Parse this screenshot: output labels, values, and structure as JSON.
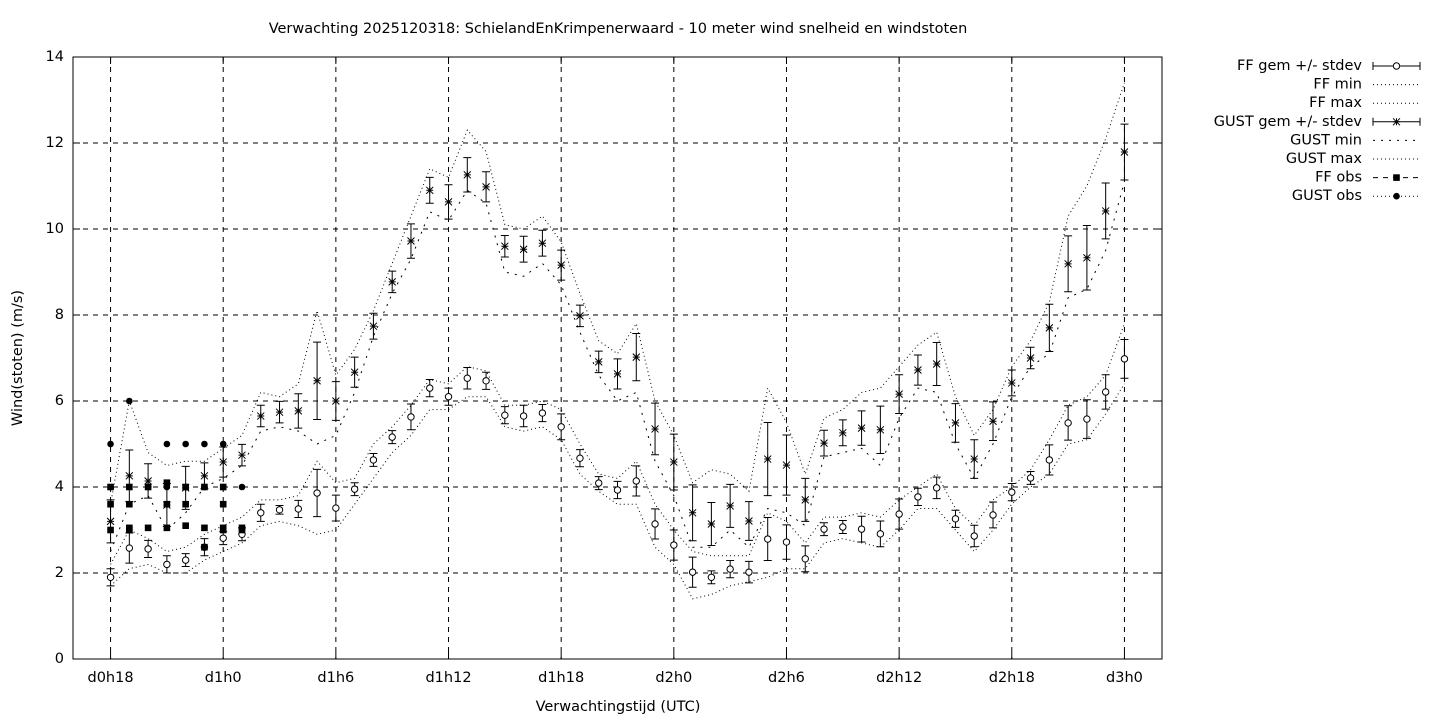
{
  "chart_data": {
    "type": "errorbar",
    "title": "Verwachting 2025120318: SchielandEnKrimpenerwaard - 10 meter wind snelheid en windstoten",
    "xlabel": "Verwachtingstijd (UTC)",
    "ylabel": "Wind(stoten) (m/s)",
    "xlim": [
      16,
      74
    ],
    "xticks": [
      {
        "value": 18,
        "label": "d0h18"
      },
      {
        "value": 24,
        "label": "d1h0"
      },
      {
        "value": 30,
        "label": "d1h6"
      },
      {
        "value": 36,
        "label": "d1h12"
      },
      {
        "value": 42,
        "label": "d1h18"
      },
      {
        "value": 48,
        "label": "d2h0"
      },
      {
        "value": 54,
        "label": "d2h6"
      },
      {
        "value": 60,
        "label": "d2h12"
      },
      {
        "value": 66,
        "label": "d2h18"
      },
      {
        "value": 72,
        "label": "d3h0"
      }
    ],
    "ylim": [
      0,
      14
    ],
    "yticks": [
      0,
      2,
      4,
      6,
      8,
      10,
      12,
      14
    ],
    "grid": true,
    "legend": "outside-top-right",
    "x": [
      18,
      19,
      20,
      21,
      22,
      23,
      24,
      25,
      26,
      27,
      28,
      29,
      30,
      31,
      32,
      33,
      34,
      35,
      36,
      37,
      38,
      39,
      40,
      41,
      42,
      43,
      44,
      45,
      46,
      47,
      48,
      49,
      50,
      51,
      52,
      53,
      54,
      55,
      56,
      57,
      58,
      59,
      60,
      61,
      62,
      63,
      64,
      65,
      66,
      67,
      68,
      69,
      70,
      71,
      72
    ],
    "series": [
      {
        "name": "FF gem +/- stdev",
        "style": "errorbar",
        "marker": "open-circle",
        "color": "#000000",
        "values": [
          1.9,
          2.58,
          2.56,
          2.2,
          2.3,
          2.6,
          2.81,
          2.9,
          3.4,
          3.47,
          3.49,
          3.86,
          3.51,
          3.95,
          4.63,
          5.16,
          5.63,
          6.3,
          6.1,
          6.53,
          6.47,
          5.67,
          5.65,
          5.72,
          5.4,
          4.67,
          4.09,
          3.93,
          4.14,
          3.14,
          2.65,
          2.02,
          1.9,
          2.09,
          2.02,
          2.79,
          2.72,
          2.33,
          3.02,
          3.07,
          3.02,
          2.91,
          3.37,
          3.77,
          3.98,
          3.26,
          2.86,
          3.35,
          3.88,
          4.21,
          4.63,
          5.49,
          5.58,
          6.21,
          6.98
        ],
        "errors": [
          0.2,
          0.35,
          0.2,
          0.2,
          0.15,
          0.2,
          0.15,
          0.15,
          0.2,
          0.1,
          0.2,
          0.55,
          0.3,
          0.15,
          0.15,
          0.15,
          0.3,
          0.2,
          0.2,
          0.25,
          0.2,
          0.2,
          0.25,
          0.2,
          0.3,
          0.2,
          0.15,
          0.2,
          0.35,
          0.35,
          0.35,
          0.35,
          0.15,
          0.2,
          0.25,
          0.5,
          0.4,
          0.3,
          0.15,
          0.15,
          0.3,
          0.3,
          0.35,
          0.2,
          0.25,
          0.2,
          0.25,
          0.3,
          0.2,
          0.15,
          0.35,
          0.4,
          0.45,
          0.4,
          0.45
        ]
      },
      {
        "name": "FF min",
        "style": "dotted",
        "color": "#000000",
        "values": [
          1.7,
          2.1,
          2.2,
          2.0,
          2.0,
          2.3,
          2.5,
          2.7,
          3.1,
          3.2,
          3.1,
          2.9,
          3.0,
          3.6,
          4.2,
          4.8,
          5.2,
          5.8,
          5.8,
          6.1,
          6.1,
          5.4,
          5.3,
          5.4,
          5.1,
          4.3,
          3.9,
          3.6,
          3.6,
          2.6,
          2.2,
          1.4,
          1.5,
          1.7,
          1.8,
          1.9,
          2.1,
          2.1,
          2.7,
          2.8,
          2.7,
          2.6,
          3.0,
          3.5,
          3.5,
          3.0,
          2.5,
          3.0,
          3.6,
          4.0,
          4.3,
          5.0,
          5.1,
          5.7,
          6.4
        ]
      },
      {
        "name": "FF max",
        "style": "dotted",
        "color": "#000000",
        "values": [
          2.2,
          3.0,
          2.8,
          2.5,
          2.6,
          2.9,
          3.1,
          3.3,
          3.7,
          3.7,
          3.8,
          4.6,
          4.1,
          4.2,
          5.0,
          5.4,
          5.9,
          6.5,
          6.4,
          6.8,
          6.7,
          5.9,
          5.9,
          6.0,
          5.8,
          5.0,
          4.3,
          4.2,
          4.6,
          3.6,
          3.0,
          2.5,
          2.4,
          2.4,
          2.4,
          3.4,
          3.2,
          2.7,
          3.3,
          3.3,
          3.4,
          3.3,
          3.7,
          4.0,
          4.3,
          3.5,
          3.1,
          3.7,
          4.0,
          4.4,
          5.1,
          5.9,
          6.1,
          6.6,
          7.8
        ]
      },
      {
        "name": "GUST gem +/- stdev",
        "style": "errorbar",
        "marker": "star",
        "color": "#000000",
        "values": [
          3.2,
          4.26,
          4.14,
          3.58,
          3.98,
          4.26,
          4.58,
          4.74,
          5.65,
          5.74,
          5.77,
          6.47,
          6.0,
          6.67,
          7.74,
          8.77,
          9.72,
          10.9,
          10.63,
          11.26,
          10.98,
          9.6,
          9.53,
          9.67,
          9.16,
          7.98,
          6.91,
          6.63,
          7.02,
          5.35,
          4.58,
          3.4,
          3.14,
          3.56,
          3.21,
          4.65,
          4.51,
          3.7,
          5.02,
          5.26,
          5.37,
          5.33,
          6.16,
          6.72,
          6.86,
          5.49,
          4.65,
          5.53,
          6.42,
          7.0,
          7.7,
          9.19,
          9.33,
          10.42,
          11.79
        ],
        "errors": [
          0.5,
          0.6,
          0.4,
          0.5,
          0.5,
          0.3,
          0.35,
          0.25,
          0.25,
          0.25,
          0.4,
          0.9,
          0.45,
          0.35,
          0.3,
          0.25,
          0.4,
          0.3,
          0.4,
          0.4,
          0.35,
          0.25,
          0.3,
          0.3,
          0.35,
          0.25,
          0.25,
          0.35,
          0.55,
          0.6,
          0.65,
          0.65,
          0.5,
          0.5,
          0.45,
          0.85,
          0.7,
          0.5,
          0.3,
          0.3,
          0.4,
          0.55,
          0.45,
          0.35,
          0.5,
          0.45,
          0.45,
          0.45,
          0.3,
          0.25,
          0.55,
          0.65,
          0.75,
          0.65,
          0.65
        ]
      },
      {
        "name": "GUST min",
        "style": "dotted-wide",
        "color": "#000000",
        "values": [
          2.5,
          3.6,
          3.8,
          3.0,
          3.4,
          4.0,
          4.2,
          4.5,
          5.3,
          5.4,
          5.3,
          5.0,
          5.2,
          6.2,
          7.5,
          8.5,
          9.3,
          10.4,
          10.2,
          10.9,
          10.6,
          9.0,
          8.9,
          9.2,
          8.7,
          7.6,
          6.6,
          6.0,
          6.2,
          4.6,
          3.8,
          2.6,
          2.6,
          3.0,
          2.6,
          3.5,
          3.4,
          3.1,
          4.7,
          4.8,
          4.9,
          4.5,
          5.6,
          6.3,
          6.2,
          5.0,
          4.2,
          5.0,
          6.1,
          6.8,
          7.1,
          8.4,
          8.6,
          9.5,
          11.1
        ]
      },
      {
        "name": "GUST max",
        "style": "dotted",
        "color": "#000000",
        "values": [
          3.6,
          6.0,
          4.8,
          4.5,
          4.6,
          4.6,
          4.9,
          5.2,
          6.2,
          6.1,
          6.4,
          8.1,
          6.6,
          7.2,
          8.1,
          9.2,
          10.3,
          11.4,
          11.2,
          12.3,
          11.8,
          10.1,
          10.0,
          10.3,
          9.7,
          8.5,
          7.4,
          7.1,
          7.8,
          6.0,
          5.2,
          4.1,
          4.4,
          4.3,
          3.9,
          6.3,
          5.5,
          4.3,
          5.6,
          5.8,
          6.2,
          6.3,
          6.8,
          7.3,
          7.6,
          6.1,
          5.2,
          5.8,
          6.8,
          7.4,
          8.3,
          10.3,
          11.0,
          12.1,
          13.4
        ]
      },
      {
        "name": "FF obs",
        "style": "points",
        "marker": "square",
        "color": "#000000",
        "x": [
          18,
          18,
          18,
          19,
          19,
          19,
          19,
          20,
          20,
          21,
          21,
          21,
          22,
          22,
          22,
          23,
          23,
          23,
          24,
          24,
          24,
          24,
          25,
          25
        ],
        "values": [
          4.0,
          3.6,
          3.0,
          4.0,
          3.6,
          3.05,
          3.0,
          4.0,
          3.05,
          4.1,
          3.6,
          3.05,
          4.0,
          3.6,
          3.1,
          4.0,
          3.05,
          2.6,
          4.0,
          3.6,
          3.05,
          3.0,
          3.05,
          3.0
        ]
      },
      {
        "name": "GUST obs",
        "style": "points",
        "marker": "dot",
        "color": "#000000",
        "x": [
          18,
          19,
          20,
          21,
          21,
          22,
          22,
          23,
          23,
          24,
          24,
          25
        ],
        "values": [
          5.0,
          6.0,
          4.0,
          5.0,
          4.0,
          5.0,
          4.0,
          5.0,
          4.0,
          5.0,
          4.0,
          4.0
        ]
      }
    ]
  }
}
